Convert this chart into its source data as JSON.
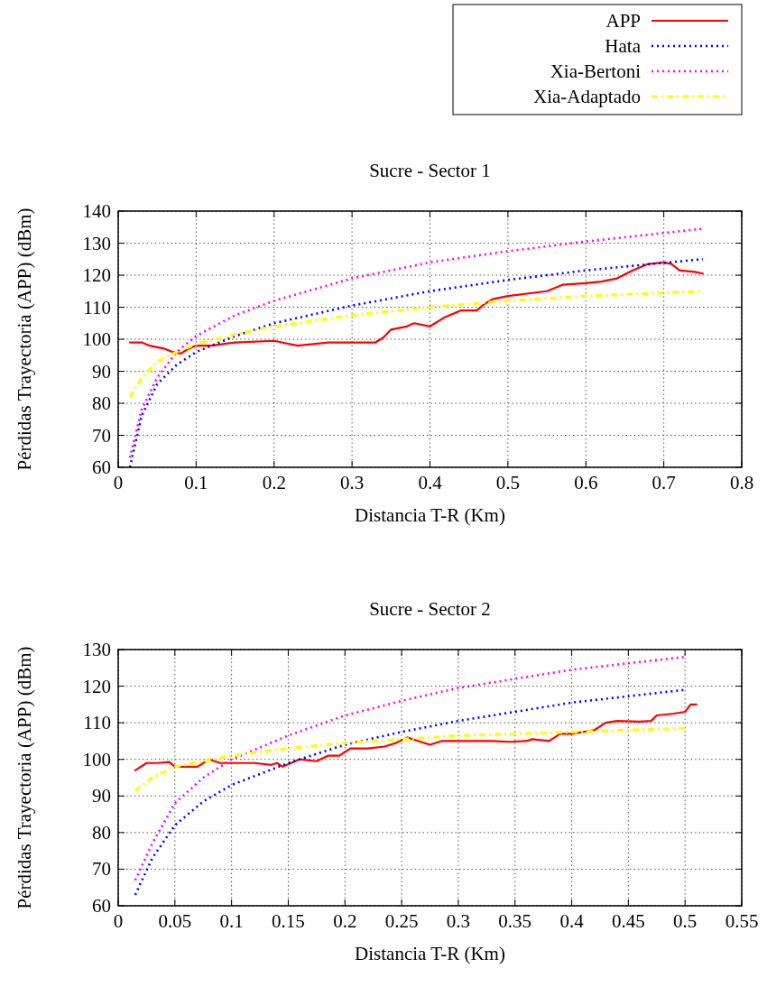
{
  "chart_data": [
    {
      "type": "line",
      "title": "Sucre - Sector 1",
      "xlabel": "Distancia T-R (Km)",
      "ylabel": "Pérdidas Trayectoria (APP) (dBm)",
      "xlim": [
        0,
        0.8
      ],
      "xticks": [
        0,
        0.1,
        0.2,
        0.3,
        0.4,
        0.5,
        0.6,
        0.7,
        0.8
      ],
      "ylim": [
        60,
        140
      ],
      "yticks": [
        60,
        70,
        80,
        90,
        100,
        110,
        120,
        130,
        140
      ],
      "grid": true,
      "legend": "top right",
      "marker": "none",
      "series": [
        {
          "name": "APP",
          "color": "#ff0000",
          "line_style": "solid",
          "x": [
            0.015,
            0.03,
            0.04,
            0.05,
            0.06,
            0.07,
            0.08,
            0.09,
            0.1,
            0.12,
            0.15,
            0.2,
            0.23,
            0.27,
            0.3,
            0.33,
            0.34,
            0.35,
            0.37,
            0.38,
            0.4,
            0.42,
            0.44,
            0.46,
            0.47,
            0.48,
            0.5,
            0.55,
            0.57,
            0.6,
            0.62,
            0.64,
            0.66,
            0.68,
            0.7,
            0.71,
            0.72,
            0.74,
            0.75
          ],
          "values": [
            99,
            99,
            98,
            97.5,
            97,
            96,
            95.5,
            97,
            98,
            98,
            99,
            99.5,
            98,
            99,
            99,
            99,
            100.5,
            103,
            104,
            105,
            104,
            107,
            109,
            109,
            111,
            112.5,
            113.5,
            115,
            117,
            117.5,
            118,
            119,
            121.5,
            123.5,
            124,
            123.5,
            121.5,
            121,
            120.5
          ]
        },
        {
          "name": "Hata",
          "color": "#0000ff",
          "line_style": "dotted",
          "x": [
            0.015,
            0.03,
            0.05,
            0.075,
            0.1,
            0.15,
            0.2,
            0.3,
            0.4,
            0.5,
            0.6,
            0.75
          ],
          "values": [
            60,
            76,
            86,
            92,
            96,
            101,
            105,
            110.5,
            115,
            118.5,
            121.5,
            125
          ]
        },
        {
          "name": "Xia-Bertoni",
          "color": "#ff00ff",
          "line_style": "dotted",
          "x": [
            0.015,
            0.03,
            0.05,
            0.075,
            0.1,
            0.15,
            0.2,
            0.3,
            0.4,
            0.5,
            0.6,
            0.75
          ],
          "values": [
            63,
            78,
            88,
            96,
            101,
            107.5,
            112,
            119,
            124,
            127.5,
            130.5,
            134.5
          ]
        },
        {
          "name": "Xia-Adaptado",
          "color": "#ffff00",
          "line_style": "dashed",
          "x": [
            0.015,
            0.03,
            0.05,
            0.075,
            0.1,
            0.15,
            0.2,
            0.3,
            0.4,
            0.5,
            0.6,
            0.75
          ],
          "values": [
            82,
            88,
            93,
            96,
            98.5,
            101.5,
            104,
            107.5,
            110,
            112,
            113.5,
            115
          ]
        }
      ]
    },
    {
      "type": "line",
      "title": "Sucre - Sector 2",
      "xlabel": "Distancia T-R (Km)",
      "ylabel": "Pérdidas Trayectoria (APP) (dBm)",
      "xlim": [
        0,
        0.55
      ],
      "xticks": [
        0,
        0.05,
        0.1,
        0.15,
        0.2,
        0.25,
        0.3,
        0.35,
        0.4,
        0.45,
        0.5,
        0.55
      ],
      "ylim": [
        60,
        130
      ],
      "yticks": [
        60,
        70,
        80,
        90,
        100,
        110,
        120,
        130
      ],
      "grid": true,
      "marker": "none",
      "series": [
        {
          "color": "#ff0000",
          "line_style": "solid",
          "x": [
            0.015,
            0.025,
            0.035,
            0.045,
            0.05,
            0.07,
            0.08,
            0.09,
            0.12,
            0.135,
            0.14,
            0.145,
            0.16,
            0.175,
            0.185,
            0.195,
            0.205,
            0.22,
            0.235,
            0.245,
            0.255,
            0.265,
            0.275,
            0.285,
            0.3,
            0.33,
            0.345,
            0.36,
            0.365,
            0.38,
            0.39,
            0.4,
            0.41,
            0.42,
            0.43,
            0.44,
            0.46,
            0.47,
            0.475,
            0.49,
            0.5,
            0.505,
            0.51
          ],
          "values": [
            97,
            99,
            99,
            99.3,
            98,
            98,
            100,
            99,
            99,
            98.5,
            99,
            98,
            100,
            99.5,
            101,
            101,
            103,
            103,
            103.5,
            104.5,
            106,
            105,
            104,
            105,
            105,
            105,
            104.8,
            105,
            105.5,
            105,
            107,
            107,
            107.5,
            108,
            110,
            110.5,
            110.3,
            110.5,
            112,
            112.5,
            113,
            115,
            115
          ]
        },
        {
          "color": "#0000ff",
          "line_style": "dotted",
          "x": [
            0.015,
            0.03,
            0.05,
            0.075,
            0.1,
            0.15,
            0.2,
            0.25,
            0.3,
            0.4,
            0.5
          ],
          "values": [
            63,
            73,
            82,
            88.5,
            93,
            99,
            104,
            107.5,
            110.5,
            115.5,
            119
          ]
        },
        {
          "color": "#ff00ff",
          "line_style": "dotted",
          "x": [
            0.015,
            0.03,
            0.05,
            0.075,
            0.1,
            0.15,
            0.2,
            0.25,
            0.3,
            0.4,
            0.5
          ],
          "values": [
            67,
            77,
            88,
            95,
            100,
            106.5,
            112,
            116,
            119.5,
            124.5,
            128
          ]
        },
        {
          "color": "#ffff00",
          "line_style": "dashed",
          "x": [
            0.015,
            0.03,
            0.05,
            0.075,
            0.1,
            0.15,
            0.2,
            0.25,
            0.3,
            0.4,
            0.5
          ],
          "values": [
            91.5,
            95,
            98,
            99.5,
            101,
            103,
            104.5,
            105.5,
            106.5,
            107.5,
            108.5
          ]
        }
      ]
    }
  ]
}
